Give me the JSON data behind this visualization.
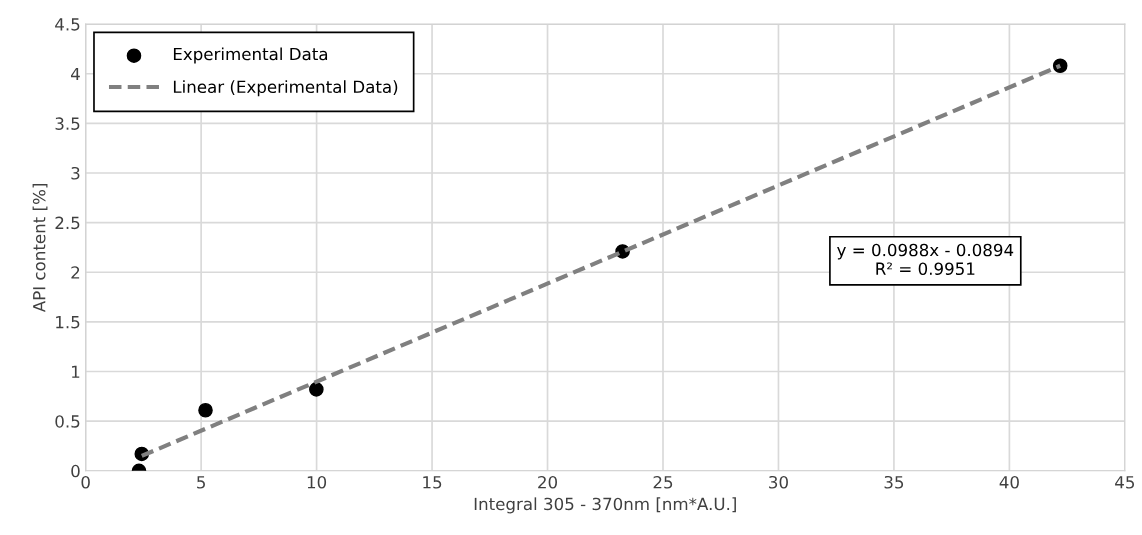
{
  "chart_data": {
    "type": "scatter",
    "xlabel": "Integral 305 - 370nm [nm*A.U.]",
    "ylabel": "API content [%]",
    "series": [
      {
        "name": "Experimental Data",
        "color": "#000000",
        "marker": "circle",
        "x": [
          2.31,
          2.43,
          5.19,
          9.99,
          23.25,
          42.2
        ],
        "values": [
          0,
          0.17,
          0.61,
          0.82,
          2.21,
          4.08
        ]
      },
      {
        "name": "Linear (Experimental Data)",
        "type": "line",
        "color": "#808080",
        "line_style": "dashed",
        "marker": "none",
        "x": [
          2.43,
          42.2
        ],
        "values": [
          0.15,
          4.08
        ]
      }
    ],
    "xlim": [
      0,
      45
    ],
    "xticks": [
      0,
      5,
      10,
      15,
      20,
      25,
      30,
      35,
      40,
      45
    ],
    "ylim": [
      0,
      4.5
    ],
    "yticks": [
      0,
      0.5,
      1,
      1.5,
      2,
      2.5,
      3,
      3.5,
      4,
      4.5
    ],
    "grid": true,
    "legend": "top left",
    "annotations": [
      "y = 0.0988x - 0.0894\nR² = 0.9951"
    ]
  }
}
